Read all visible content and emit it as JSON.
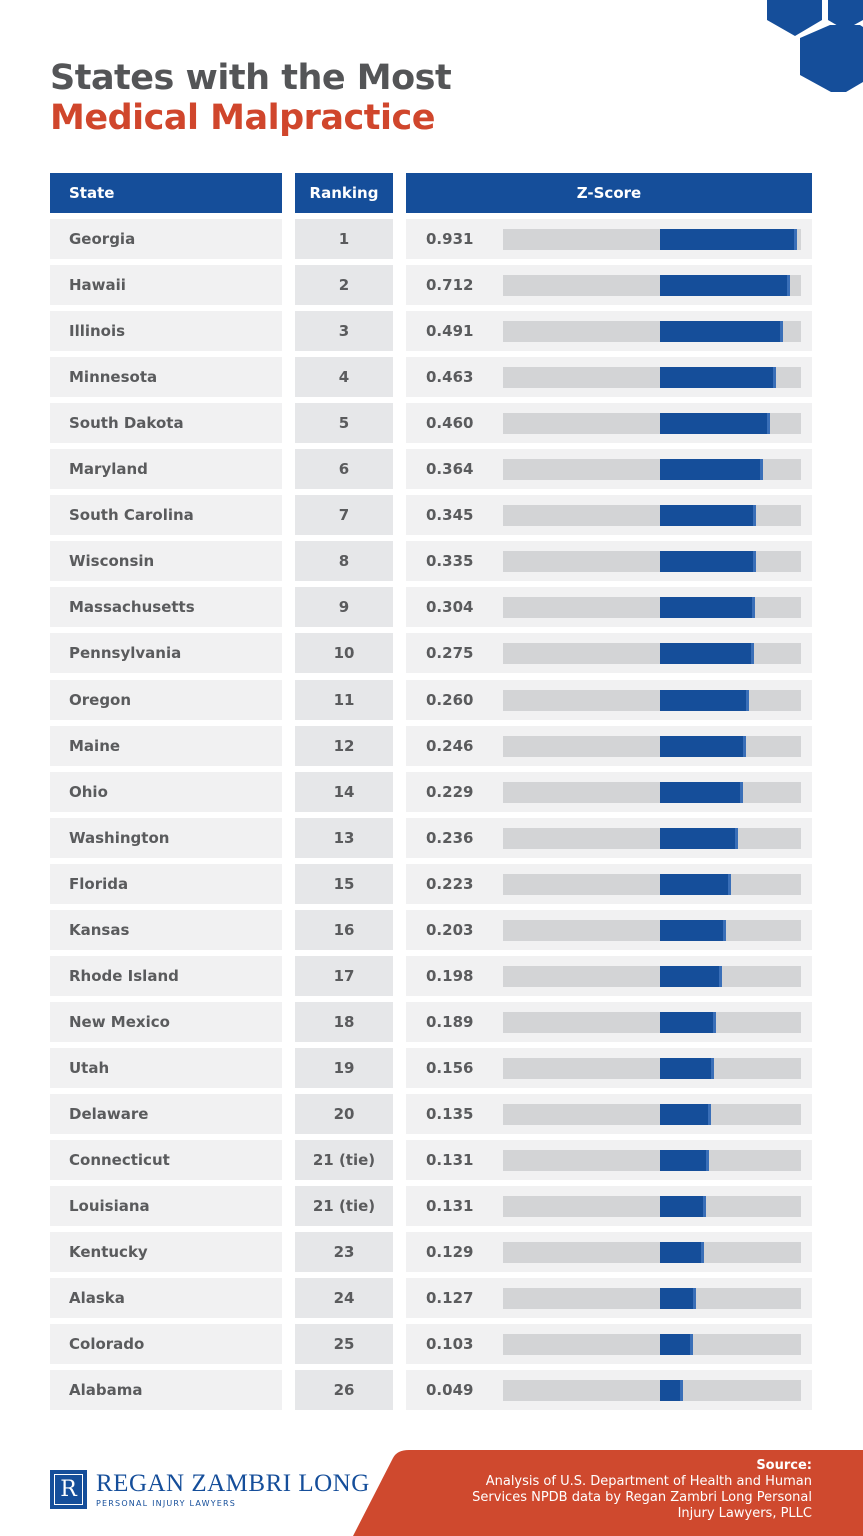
{
  "title_line1": "States with the Most",
  "title_line2": "Medical Malpractice",
  "colors": {
    "brand_blue": "#154e9a",
    "accent_red": "#d0462c",
    "track_gray": "#d3d4d6",
    "text_gray": "#545557"
  },
  "headers": {
    "state": "State",
    "ranking": "Ranking",
    "zscore": "Z-Score"
  },
  "chart_data": {
    "type": "table",
    "columns": [
      "State",
      "Ranking",
      "Z-Score"
    ],
    "rows": [
      {
        "state": "Georgia",
        "rank": "1",
        "z": "0.931",
        "fill": 0.987
      },
      {
        "state": "Hawaii",
        "rank": "2",
        "z": "0.712",
        "fill": 0.963
      },
      {
        "state": "Illinois",
        "rank": "3",
        "z": "0.491",
        "fill": 0.94
      },
      {
        "state": "Minnesota",
        "rank": "4",
        "z": "0.463",
        "fill": 0.916
      },
      {
        "state": "South Dakota",
        "rank": "5",
        "z": "0.460",
        "fill": 0.896
      },
      {
        "state": "Maryland",
        "rank": "6",
        "z": "0.364",
        "fill": 0.872
      },
      {
        "state": "South Carolina",
        "rank": "7",
        "z": "0.345",
        "fill": 0.849
      },
      {
        "state": "Wisconsin",
        "rank": "8",
        "z": "0.335",
        "fill": 0.849
      },
      {
        "state": "Massachusetts",
        "rank": "9",
        "z": "0.304",
        "fill": 0.846
      },
      {
        "state": "Pennsylvania",
        "rank": "10",
        "z": "0.275",
        "fill": 0.842
      },
      {
        "state": "Oregon",
        "rank": "11",
        "z": "0.260",
        "fill": 0.826
      },
      {
        "state": "Maine",
        "rank": "12",
        "z": "0.246",
        "fill": 0.815
      },
      {
        "state": "Ohio",
        "rank": "14",
        "z": "0.229",
        "fill": 0.805
      },
      {
        "state": "Washington",
        "rank": "13",
        "z": "0.236",
        "fill": 0.789
      },
      {
        "state": "Florida",
        "rank": "15",
        "z": "0.223",
        "fill": 0.765
      },
      {
        "state": "Kansas",
        "rank": "16",
        "z": "0.203",
        "fill": 0.748
      },
      {
        "state": "Rhode Island",
        "rank": "17",
        "z": "0.198",
        "fill": 0.735
      },
      {
        "state": "New Mexico",
        "rank": "18",
        "z": "0.189",
        "fill": 0.715
      },
      {
        "state": "Utah",
        "rank": "19",
        "z": "0.156",
        "fill": 0.708
      },
      {
        "state": "Delaware",
        "rank": "20",
        "z": "0.135",
        "fill": 0.698
      },
      {
        "state": "Connecticut",
        "rank": "21 (tie)",
        "z": "0.131",
        "fill": 0.691
      },
      {
        "state": "Louisiana",
        "rank": "21 (tie)",
        "z": "0.131",
        "fill": 0.681
      },
      {
        "state": "Kentucky",
        "rank": "23",
        "z": "0.129",
        "fill": 0.674
      },
      {
        "state": "Alaska",
        "rank": "24",
        "z": "0.127",
        "fill": 0.648
      },
      {
        "state": "Colorado",
        "rank": "25",
        "z": "0.103",
        "fill": 0.638
      },
      {
        "state": "Alabama",
        "rank": "26",
        "z": "0.049",
        "fill": 0.604
      }
    ],
    "bar_fill_start": 0.527
  },
  "logo": {
    "name": "REGAN ZAMBRI LONG",
    "sub": "PERSONAL INJURY LAWYERS",
    "letter": "R"
  },
  "source": {
    "label": "Source:",
    "text": "Analysis of U.S. Department of Health and Human Services NPDB data by Regan Zambri Long Personal Injury Lawyers, PLLC"
  }
}
